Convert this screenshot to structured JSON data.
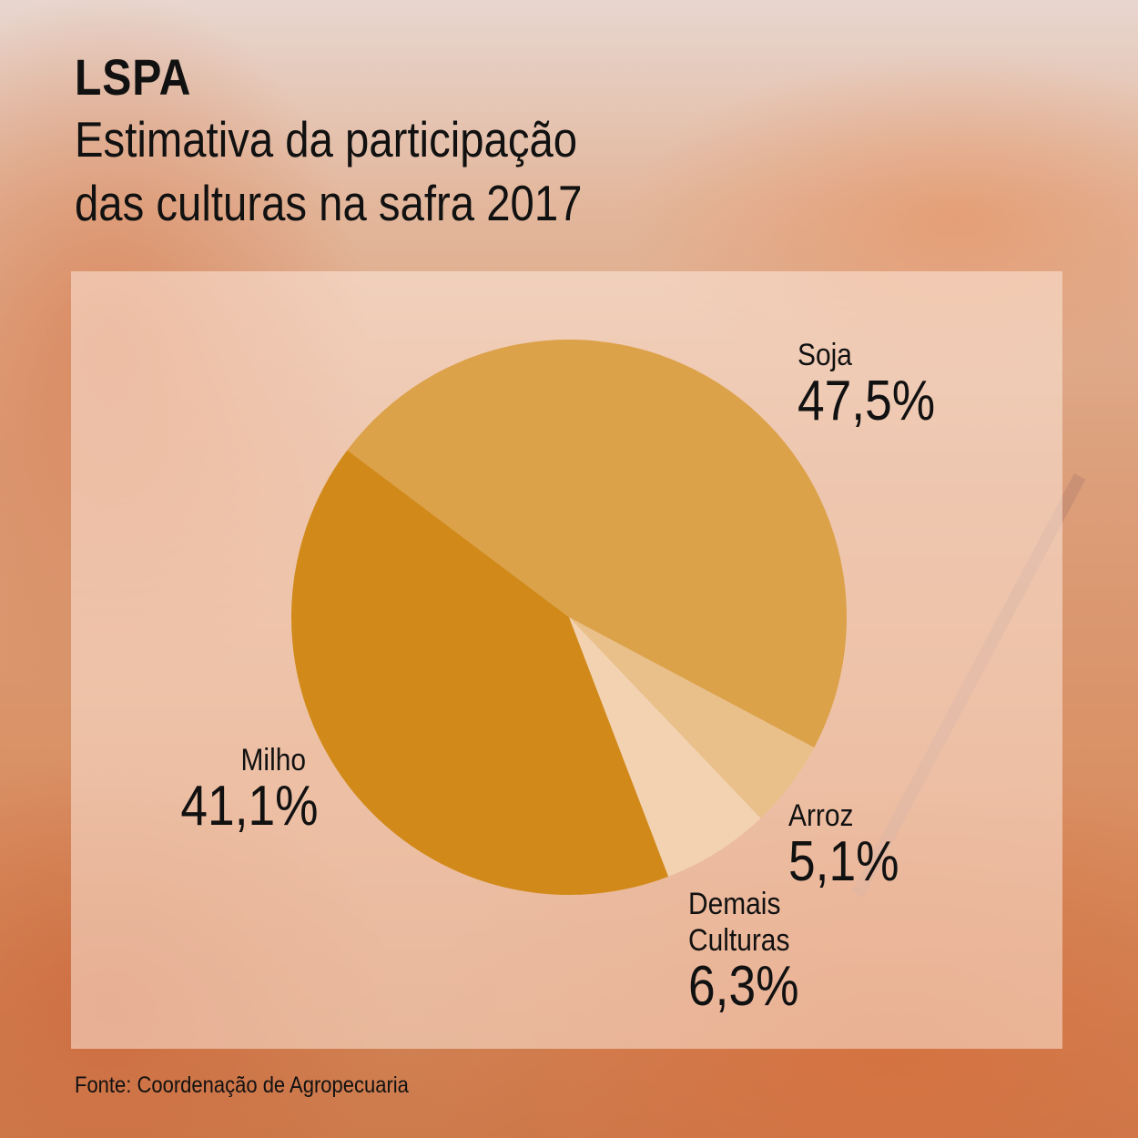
{
  "header": {
    "title": "LSPA",
    "subtitle_lines": [
      "Estimativa da participação",
      "das culturas na safra 2017"
    ]
  },
  "source": "Fonte: Coordenação de Agropecuaria",
  "chart_data": {
    "type": "pie",
    "title": "LSPA",
    "subtitle": "Estimativa da participação das culturas na safra 2017",
    "unit": "%",
    "slices": [
      {
        "name_lines": [
          "Soja"
        ],
        "value": 47.5,
        "label": "47,5%",
        "color": "#dca24a"
      },
      {
        "name_lines": [
          "Arroz"
        ],
        "value": 5.1,
        "label": "5,1%",
        "color": "#e9c08a"
      },
      {
        "name_lines": [
          "Demais",
          "Culturas"
        ],
        "value": 6.3,
        "label": "6,3%",
        "color": "#f2d2b0"
      },
      {
        "name_lines": [
          "Milho"
        ],
        "value": 41.1,
        "label": "41,1%",
        "color": "#d18a19"
      }
    ],
    "legend": "none"
  }
}
